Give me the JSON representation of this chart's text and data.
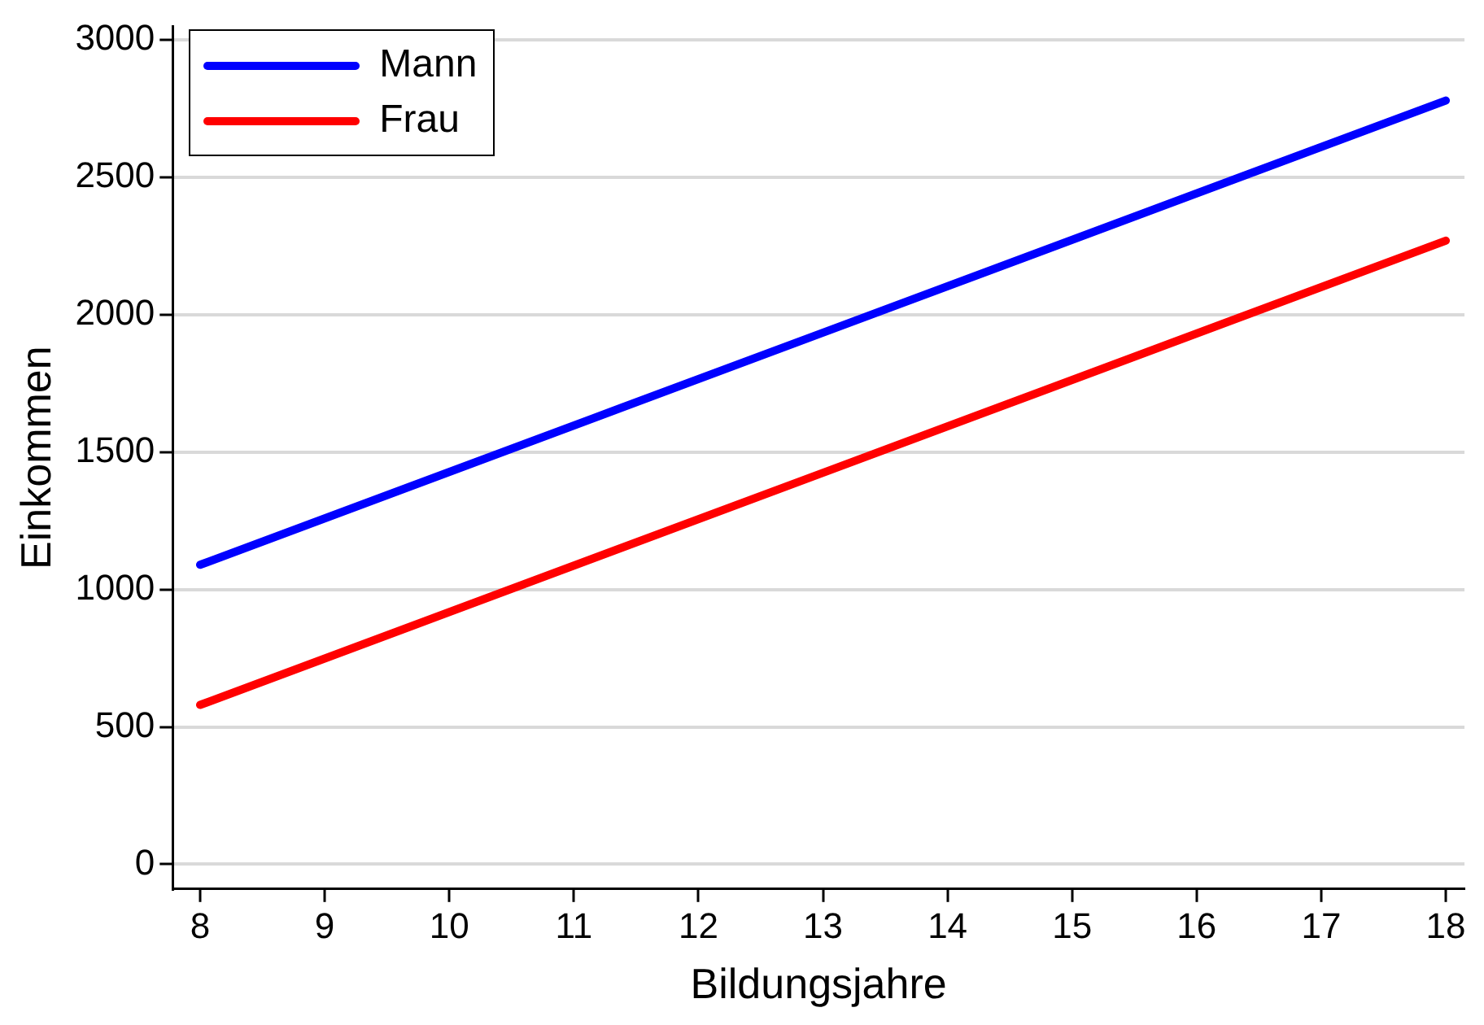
{
  "chart_data": {
    "type": "line",
    "xlabel": "Bildungsjahre",
    "ylabel": "Einkommen",
    "x": [
      8,
      18
    ],
    "series": [
      {
        "name": "Mann",
        "color": "#0000ff",
        "values": [
          1090,
          2780
        ]
      },
      {
        "name": "Frau",
        "color": "#ff0000",
        "values": [
          580,
          2270
        ]
      }
    ],
    "xlim": [
      7.78,
      18.15
    ],
    "xticks": [
      8,
      9,
      10,
      11,
      12,
      13,
      14,
      15,
      16,
      17,
      18
    ],
    "ylim": [
      -90,
      3050
    ],
    "yticks": [
      0,
      500,
      1000,
      1500,
      2000,
      2500,
      3000
    ],
    "grid": "y",
    "legend": "top left",
    "marker": "none",
    "line_style": "solid"
  }
}
